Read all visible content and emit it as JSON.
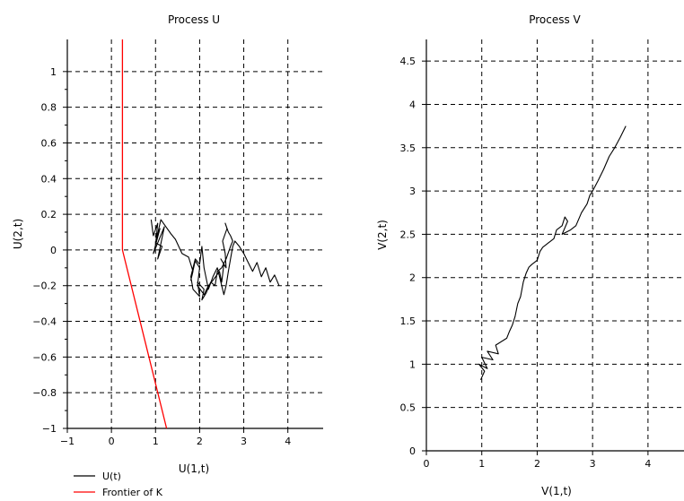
{
  "chart_data": [
    {
      "type": "line",
      "title": "Process U",
      "xlabel": "U(1,t)",
      "ylabel": "U(2,t)",
      "xlim": [
        -1,
        4.8
      ],
      "ylim": [
        -1,
        1.18
      ],
      "xticks": [
        -1,
        0,
        1,
        2,
        3,
        4
      ],
      "yticks": [
        -1,
        -0.8,
        -0.6,
        -0.4,
        -0.2,
        0,
        0.2,
        0.4,
        0.6,
        0.8,
        1
      ],
      "grid": true,
      "legend_position": "bottom-left, below plot",
      "series": [
        {
          "name": "U(t)",
          "color": "#000000",
          "x": [
            0.9,
            0.95,
            1.05,
            1.0,
            1.1,
            0.95,
            1.2,
            1.05,
            1.15,
            1.0,
            1.12,
            1.35,
            1.45,
            1.6,
            1.75,
            1.85,
            1.8,
            1.9,
            2.0,
            1.95,
            2.1,
            2.2,
            2.3,
            2.45,
            2.5,
            2.55,
            2.48,
            2.6,
            2.58,
            2.52,
            2.62,
            2.58,
            2.65,
            2.7,
            2.75,
            2.7,
            2.6,
            2.5,
            2.4,
            2.35,
            2.25,
            2.15,
            2.05,
            2.1,
            1.95,
            2.0,
            1.85,
            1.8,
            1.9,
            2.0,
            2.05,
            2.1,
            2.2,
            2.3,
            2.4,
            2.5,
            2.55,
            2.6,
            2.65,
            2.7,
            2.75,
            2.8,
            2.9,
            3.0,
            3.1,
            3.2,
            3.3,
            3.4,
            3.5,
            3.6,
            3.7,
            3.8
          ],
          "y": [
            0.17,
            0.08,
            0.15,
            0.03,
            0.12,
            -0.02,
            0.13,
            -0.05,
            0.02,
            0.04,
            0.17,
            0.09,
            0.06,
            -0.02,
            -0.04,
            -0.12,
            -0.17,
            -0.06,
            -0.1,
            -0.2,
            -0.25,
            -0.2,
            -0.17,
            -0.12,
            -0.18,
            -0.08,
            -0.05,
            -0.1,
            -0.02,
            0.05,
            0.12,
            0.15,
            0.1,
            0.08,
            0.05,
            0.02,
            -0.05,
            -0.1,
            -0.12,
            -0.2,
            -0.18,
            -0.24,
            -0.28,
            -0.22,
            -0.18,
            -0.26,
            -0.22,
            -0.15,
            -0.05,
            -0.08,
            0.02,
            -0.1,
            -0.22,
            -0.15,
            -0.1,
            -0.2,
            -0.25,
            -0.2,
            -0.12,
            -0.05,
            0.02,
            0.05,
            0.02,
            -0.02,
            -0.07,
            -0.12,
            -0.07,
            -0.15,
            -0.1,
            -0.18,
            -0.14,
            -0.2
          ]
        },
        {
          "name": "Frontier of K",
          "color": "#ff0000",
          "x": [
            0.25,
            0.25,
            1.25
          ],
          "y": [
            1.18,
            0.0,
            -1.0
          ]
        }
      ]
    },
    {
      "type": "line",
      "title": "Process V",
      "xlabel": "V(1,t)",
      "ylabel": "V(2,t)",
      "xlim": [
        0,
        4.65
      ],
      "ylim": [
        0,
        4.75
      ],
      "xticks": [
        0,
        1,
        2,
        3,
        4
      ],
      "yticks": [
        0,
        0.5,
        1,
        1.5,
        2,
        2.5,
        3,
        3.5,
        4,
        4.5
      ],
      "grid": true,
      "series": [
        {
          "color": "#000000",
          "x": [
            0.98,
            1.05,
            0.95,
            1.1,
            1.0,
            1.2,
            1.1,
            1.3,
            1.25,
            1.45,
            1.5,
            1.55,
            1.6,
            1.65,
            1.7,
            1.72,
            1.75,
            1.8,
            1.85,
            1.9,
            2.0,
            2.05,
            2.1,
            2.2,
            2.3,
            2.35,
            2.45,
            2.5,
            2.55,
            2.45,
            2.6,
            2.7,
            2.8,
            2.9,
            2.95,
            3.0,
            3.1,
            3.2,
            3.3,
            3.4,
            3.5,
            3.6
          ],
          "y": [
            0.82,
            0.92,
            1.0,
            0.95,
            1.08,
            1.05,
            1.15,
            1.12,
            1.22,
            1.3,
            1.38,
            1.45,
            1.55,
            1.7,
            1.78,
            1.85,
            1.95,
            2.05,
            2.12,
            2.15,
            2.2,
            2.3,
            2.35,
            2.4,
            2.45,
            2.55,
            2.6,
            2.7,
            2.65,
            2.5,
            2.55,
            2.6,
            2.75,
            2.85,
            2.95,
            3.0,
            3.12,
            3.25,
            3.4,
            3.5,
            3.62,
            3.75
          ]
        }
      ]
    }
  ],
  "legend": {
    "items": [
      {
        "label": "U(t)",
        "color": "#000000"
      },
      {
        "label": "Frontier of K",
        "color": "#ff0000"
      }
    ]
  }
}
